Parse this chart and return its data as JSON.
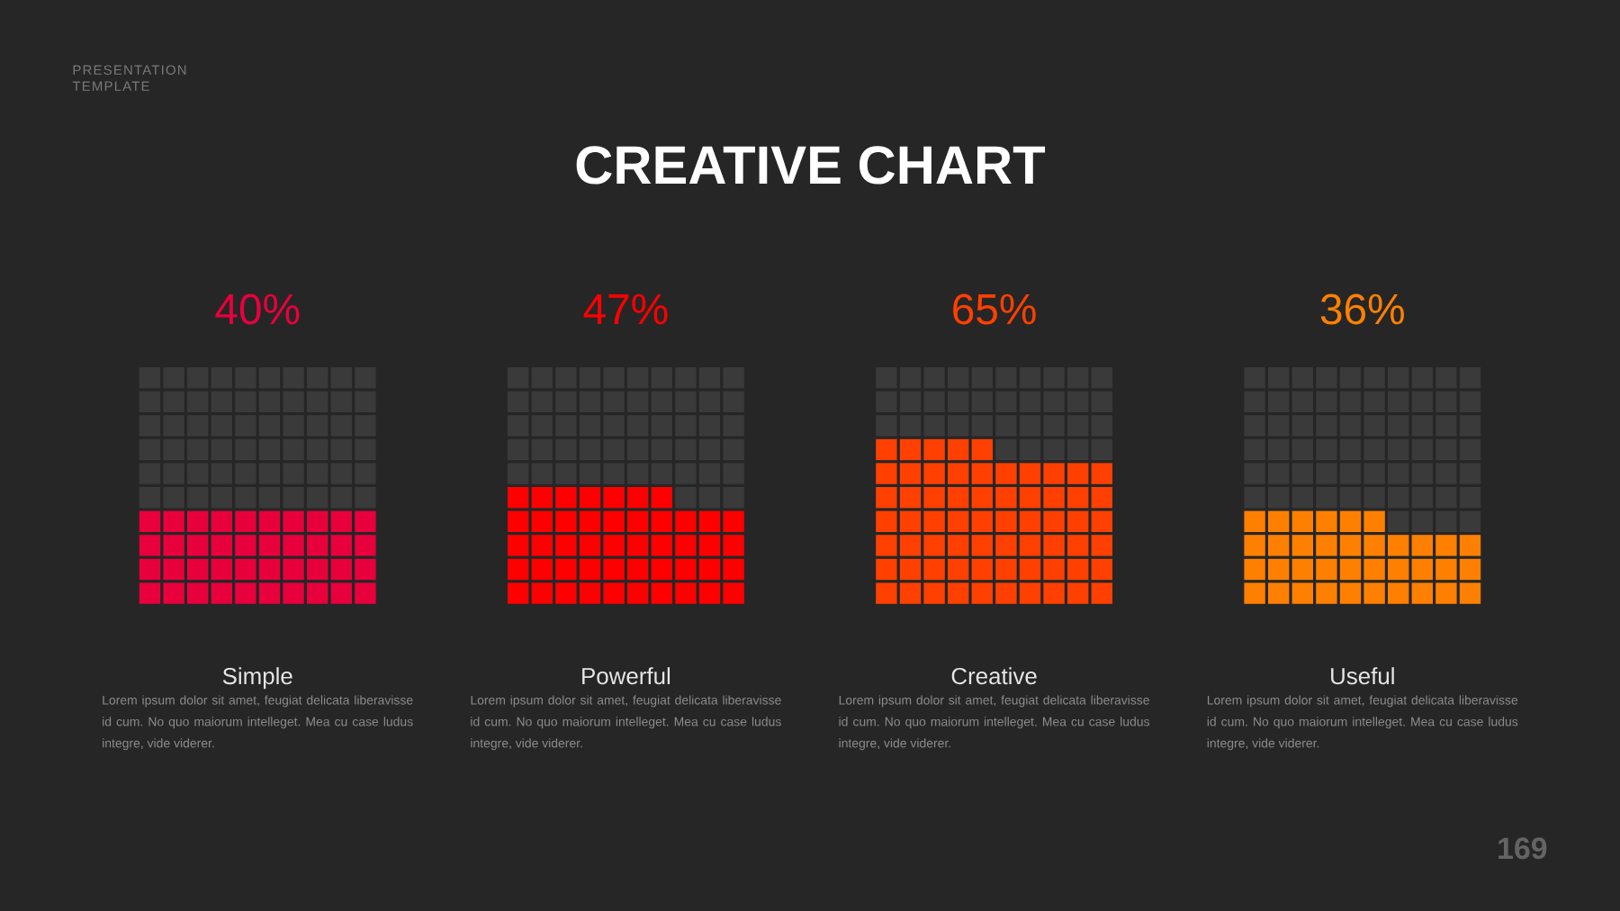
{
  "chart_data": {
    "type": "other",
    "title": "CREATIVE CHART",
    "categories": [
      "Simple",
      "Powerful",
      "Creative",
      "Useful"
    ],
    "values": [
      40,
      47,
      65,
      36
    ],
    "colors": [
      "#e8003d",
      "#ff0000",
      "#ff4000",
      "#ff8000"
    ],
    "value_labels": [
      "40%",
      "47%",
      "65%",
      "36%"
    ],
    "annotations": [
      "Lorem ipsum dolor sit amet, feugiat delicata liberavisse id cum. No quo maiorum intelleget. Mea cu case ludus integre, vide viderer.",
      "Lorem ipsum dolor sit amet, feugiat delicata liberavisse id cum. No quo maiorum intelleget. Mea cu case ludus integre, vide viderer.",
      "Lorem ipsum dolor sit amet, feugiat delicata liberavisse id cum. No quo maiorum intelleget. Mea cu case ludus integre, vide viderer.",
      "Lorem ipsum dolor sit amet, feugiat delicata liberavisse id cum. No quo maiorum intelleget. Mea cu case ludus integre, vide viderer.",
      "PRESENTATION TEMPLATE",
      "169"
    ]
  }
}
